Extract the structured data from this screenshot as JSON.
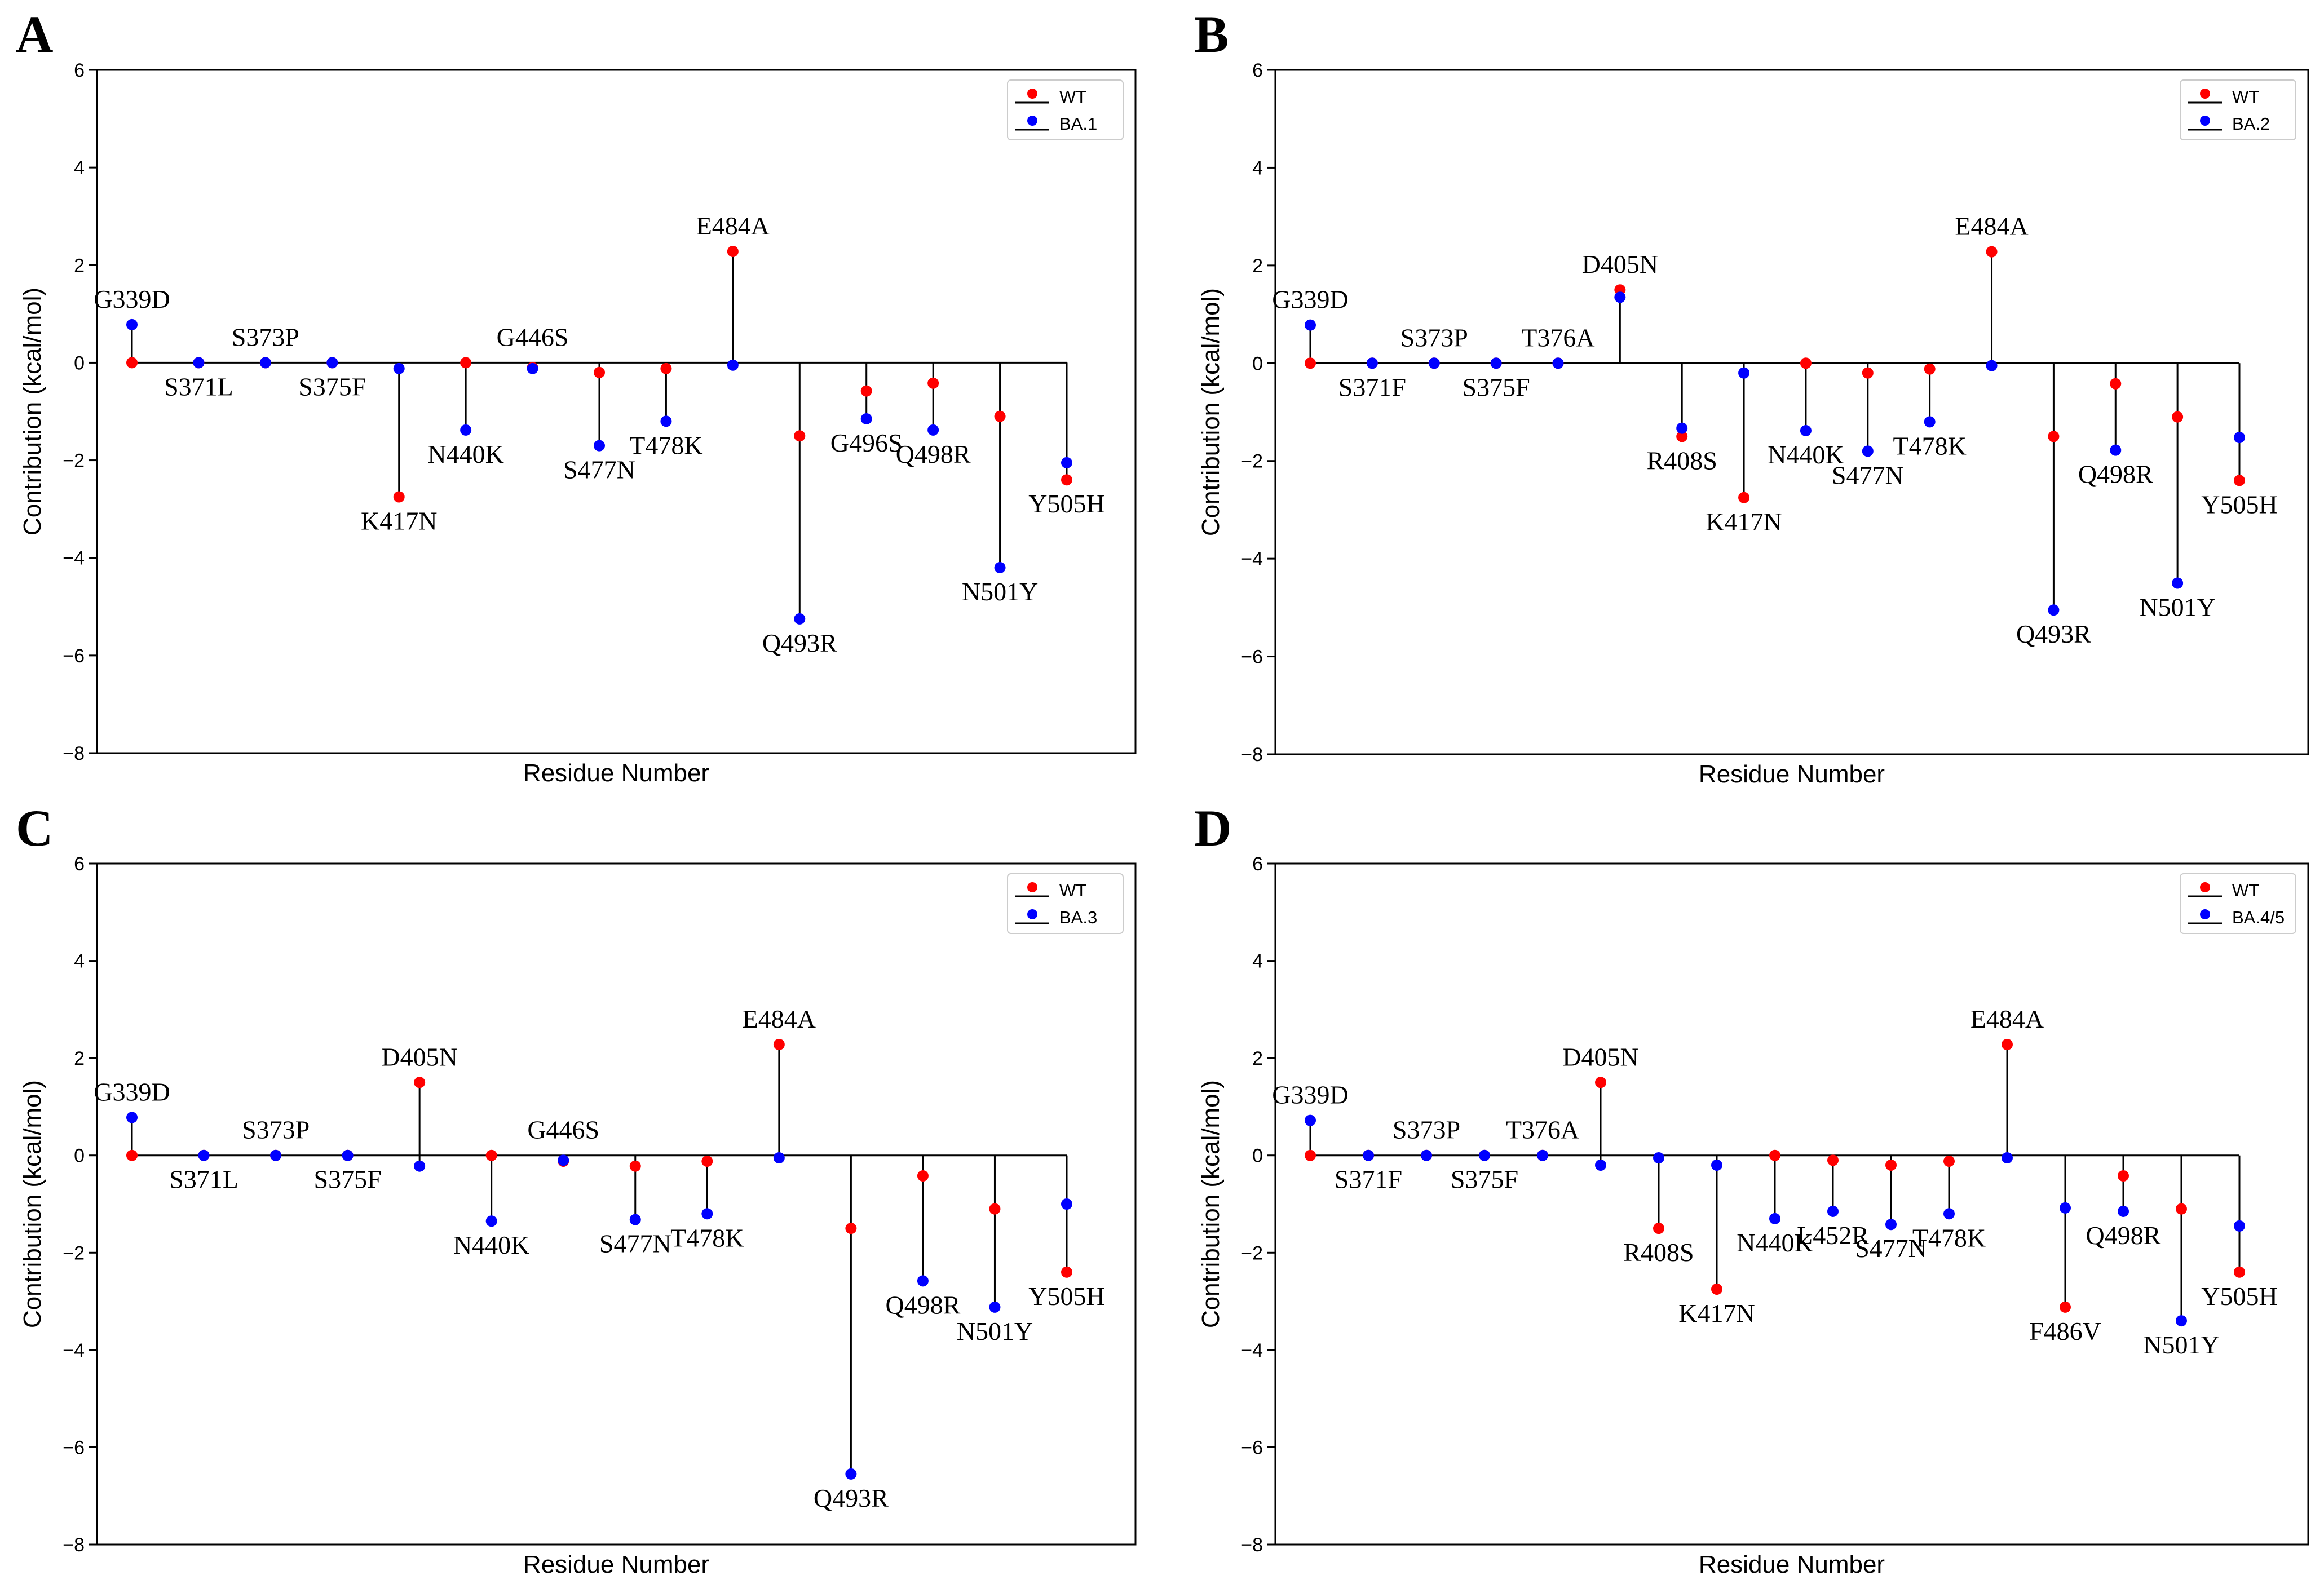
{
  "colors": {
    "wt": "#ff0000",
    "variant": "#0000ff",
    "line": "#000000"
  },
  "chart_data": [
    {
      "type": "stem",
      "panel": "A",
      "xlabel": "Residue  Number",
      "ylabel": "Contribution  (kcal/mol)",
      "ylim": [
        -8,
        6
      ],
      "yticks": [
        6,
        4,
        2,
        0,
        -2,
        -4,
        -6,
        -8
      ],
      "ytick_labels": [
        "6",
        "4",
        "2",
        "0",
        "−2",
        "−4",
        "−6",
        "−8"
      ],
      "legend": {
        "position": "top-right",
        "entries": [
          "WT",
          "BA.1"
        ]
      },
      "mutations": [
        {
          "label": "G339D",
          "wt": 0.0,
          "variant": 0.78,
          "label_pos": "above"
        },
        {
          "label": "S371L",
          "wt": 0.0,
          "variant": 0.0,
          "label_pos": "below"
        },
        {
          "label": "S373P",
          "wt": 0.0,
          "variant": 0.0,
          "label_pos": "above"
        },
        {
          "label": "S375F",
          "wt": 0.0,
          "variant": 0.0,
          "label_pos": "below"
        },
        {
          "label": "K417N",
          "wt": -2.75,
          "variant": -0.12,
          "label_pos": "below"
        },
        {
          "label": "N440K",
          "wt": 0.0,
          "variant": -1.38,
          "label_pos": "below"
        },
        {
          "label": "G446S",
          "wt": -0.1,
          "variant": -0.12,
          "label_pos": "above"
        },
        {
          "label": "S477N",
          "wt": -0.2,
          "variant": -1.7,
          "label_pos": "below"
        },
        {
          "label": "T478K",
          "wt": -0.12,
          "variant": -1.2,
          "label_pos": "below"
        },
        {
          "label": "E484A",
          "wt": 2.28,
          "variant": -0.05,
          "label_pos": "above"
        },
        {
          "label": "Q493R",
          "wt": -1.5,
          "variant": -5.25,
          "label_pos": "below"
        },
        {
          "label": "G496S",
          "wt": -0.58,
          "variant": -1.15,
          "label_pos": "below"
        },
        {
          "label": "Q498R",
          "wt": -0.42,
          "variant": -1.38,
          "label_pos": "below"
        },
        {
          "label": "N501Y",
          "wt": -1.1,
          "variant": -4.2,
          "label_pos": "below"
        },
        {
          "label": "Y505H",
          "wt": -2.4,
          "variant": -2.05,
          "label_pos": "below"
        }
      ]
    },
    {
      "type": "stem",
      "panel": "B",
      "xlabel": "Residue  Number",
      "ylabel": "Contribution  (kcal/mol)",
      "ylim": [
        -8,
        6
      ],
      "yticks": [
        6,
        4,
        2,
        0,
        -2,
        -4,
        -6,
        -8
      ],
      "ytick_labels": [
        "6",
        "4",
        "2",
        "0",
        "−2",
        "−4",
        "−6",
        "−8"
      ],
      "legend": {
        "position": "top-right",
        "entries": [
          "WT",
          "BA.2"
        ]
      },
      "mutations": [
        {
          "label": "G339D",
          "wt": 0.0,
          "variant": 0.78,
          "label_pos": "above"
        },
        {
          "label": "S371F",
          "wt": 0.0,
          "variant": 0.0,
          "label_pos": "below"
        },
        {
          "label": "S373P",
          "wt": 0.0,
          "variant": 0.0,
          "label_pos": "above"
        },
        {
          "label": "S375F",
          "wt": 0.0,
          "variant": 0.0,
          "label_pos": "below"
        },
        {
          "label": "T376A",
          "wt": 0.0,
          "variant": 0.0,
          "label_pos": "above"
        },
        {
          "label": "D405N",
          "wt": 1.5,
          "variant": 1.35,
          "label_pos": "above"
        },
        {
          "label": "R408S",
          "wt": -1.5,
          "variant": -1.33,
          "label_pos": "below"
        },
        {
          "label": "K417N",
          "wt": -2.75,
          "variant": -0.2,
          "label_pos": "below"
        },
        {
          "label": "N440K",
          "wt": 0.0,
          "variant": -1.38,
          "label_pos": "below"
        },
        {
          "label": "S477N",
          "wt": -0.2,
          "variant": -1.8,
          "label_pos": "below"
        },
        {
          "label": "T478K",
          "wt": -0.12,
          "variant": -1.2,
          "label_pos": "below"
        },
        {
          "label": "E484A",
          "wt": 2.28,
          "variant": -0.05,
          "label_pos": "above"
        },
        {
          "label": "Q493R",
          "wt": -1.5,
          "variant": -5.05,
          "label_pos": "below"
        },
        {
          "label": "Q498R",
          "wt": -0.42,
          "variant": -1.78,
          "label_pos": "below"
        },
        {
          "label": "N501Y",
          "wt": -1.1,
          "variant": -4.5,
          "label_pos": "below"
        },
        {
          "label": "Y505H",
          "wt": -2.4,
          "variant": -1.52,
          "label_pos": "below"
        }
      ]
    },
    {
      "type": "stem",
      "panel": "C",
      "xlabel": "Residue  Number",
      "ylabel": "Contribution  (kcal/mol)",
      "ylim": [
        -8,
        6
      ],
      "yticks": [
        6,
        4,
        2,
        0,
        -2,
        -4,
        -6,
        -8
      ],
      "ytick_labels": [
        "6",
        "4",
        "2",
        "0",
        "−2",
        "−4",
        "−6",
        "−8"
      ],
      "legend": {
        "position": "top-right",
        "entries": [
          "WT",
          "BA.3"
        ]
      },
      "mutations": [
        {
          "label": "G339D",
          "wt": 0.0,
          "variant": 0.78,
          "label_pos": "above"
        },
        {
          "label": "S371L",
          "wt": 0.0,
          "variant": 0.0,
          "label_pos": "below"
        },
        {
          "label": "S373P",
          "wt": 0.0,
          "variant": 0.0,
          "label_pos": "above"
        },
        {
          "label": "S375F",
          "wt": 0.0,
          "variant": 0.0,
          "label_pos": "below"
        },
        {
          "label": "D405N",
          "wt": 1.5,
          "variant": -0.22,
          "label_pos": "above"
        },
        {
          "label": "N440K",
          "wt": 0.0,
          "variant": -1.35,
          "label_pos": "below"
        },
        {
          "label": "G446S",
          "wt": -0.12,
          "variant": -0.1,
          "label_pos": "above"
        },
        {
          "label": "S477N",
          "wt": -0.22,
          "variant": -1.32,
          "label_pos": "below"
        },
        {
          "label": "T478K",
          "wt": -0.12,
          "variant": -1.2,
          "label_pos": "below"
        },
        {
          "label": "E484A",
          "wt": 2.28,
          "variant": -0.05,
          "label_pos": "above"
        },
        {
          "label": "Q493R",
          "wt": -1.5,
          "variant": -6.55,
          "label_pos": "below"
        },
        {
          "label": "Q498R",
          "wt": -0.42,
          "variant": -2.58,
          "label_pos": "below"
        },
        {
          "label": "N501Y",
          "wt": -1.1,
          "variant": -3.12,
          "label_pos": "below"
        },
        {
          "label": "Y505H",
          "wt": -2.4,
          "variant": -1.0,
          "label_pos": "below"
        }
      ]
    },
    {
      "type": "stem",
      "panel": "D",
      "xlabel": "Residue  Number",
      "ylabel": "Contribution  (kcal/mol)",
      "ylim": [
        -8,
        6
      ],
      "yticks": [
        6,
        4,
        2,
        0,
        -2,
        -4,
        -6,
        -8
      ],
      "ytick_labels": [
        "6",
        "4",
        "2",
        "0",
        "−2",
        "−4",
        "−6",
        "−8"
      ],
      "legend": {
        "position": "top-right",
        "entries": [
          "WT",
          "BA.4/5"
        ]
      },
      "mutations": [
        {
          "label": "G339D",
          "wt": 0.0,
          "variant": 0.72,
          "label_pos": "above"
        },
        {
          "label": "S371F",
          "wt": 0.0,
          "variant": 0.0,
          "label_pos": "below"
        },
        {
          "label": "S373P",
          "wt": 0.0,
          "variant": 0.0,
          "label_pos": "above"
        },
        {
          "label": "S375F",
          "wt": 0.0,
          "variant": 0.0,
          "label_pos": "below"
        },
        {
          "label": "T376A",
          "wt": 0.0,
          "variant": 0.0,
          "label_pos": "above"
        },
        {
          "label": "D405N",
          "wt": 1.5,
          "variant": -0.2,
          "label_pos": "above"
        },
        {
          "label": "R408S",
          "wt": -1.5,
          "variant": -0.05,
          "label_pos": "below"
        },
        {
          "label": "K417N",
          "wt": -2.75,
          "variant": -0.2,
          "label_pos": "below"
        },
        {
          "label": "N440K",
          "wt": 0.0,
          "variant": -1.3,
          "label_pos": "below"
        },
        {
          "label": "L452R",
          "wt": -0.1,
          "variant": -1.15,
          "label_pos": "below"
        },
        {
          "label": "S477N",
          "wt": -0.2,
          "variant": -1.42,
          "label_pos": "below"
        },
        {
          "label": "T478K",
          "wt": -0.12,
          "variant": -1.2,
          "label_pos": "below"
        },
        {
          "label": "E484A",
          "wt": 2.28,
          "variant": -0.05,
          "label_pos": "above"
        },
        {
          "label": "F486V",
          "wt": -3.12,
          "variant": -1.08,
          "label_pos": "below"
        },
        {
          "label": "Q498R",
          "wt": -0.42,
          "variant": -1.15,
          "label_pos": "below"
        },
        {
          "label": "N501Y",
          "wt": -1.1,
          "variant": -3.4,
          "label_pos": "below"
        },
        {
          "label": "Y505H",
          "wt": -2.4,
          "variant": -1.45,
          "label_pos": "below"
        }
      ]
    }
  ]
}
